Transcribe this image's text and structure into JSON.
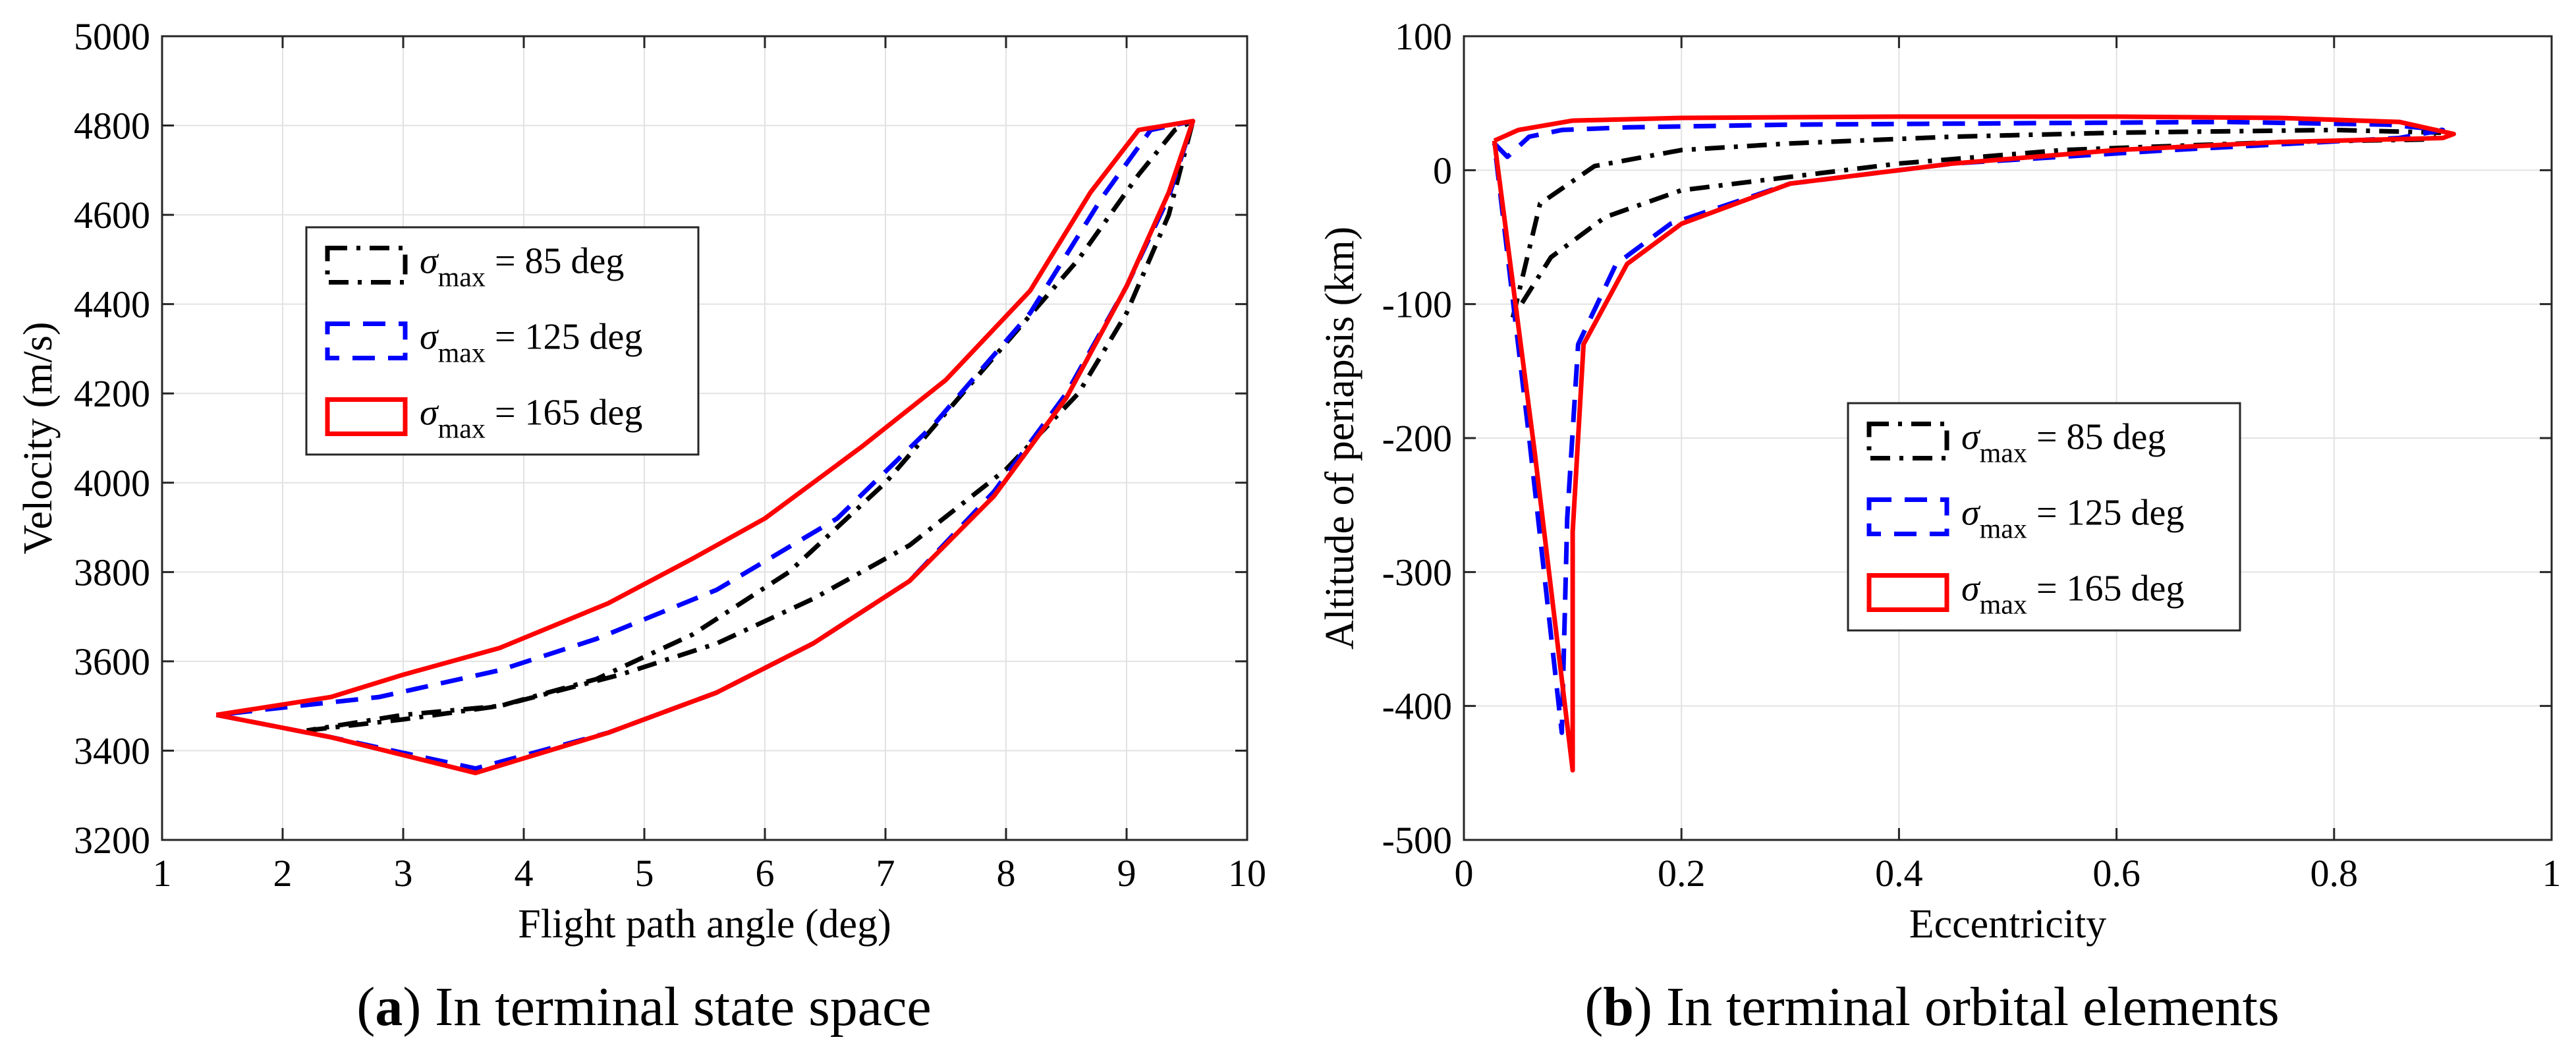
{
  "chart_data": [
    {
      "type": "line",
      "panel": "a",
      "title": "",
      "xlabel": "Flight path angle (deg)",
      "ylabel": "Velocity (m/s)",
      "xlim": [
        1,
        10
      ],
      "ylim": [
        3200,
        5000
      ],
      "xticks": [
        1,
        2,
        3,
        4,
        5,
        6,
        7,
        8,
        9,
        10
      ],
      "yticks": [
        3200,
        3400,
        3600,
        3800,
        4000,
        4200,
        4400,
        4600,
        4800,
        5000
      ],
      "grid": true,
      "legend_position": "upper-left",
      "series": [
        {
          "name": "σmax = 85 deg",
          "legend_symbol": "σ",
          "legend_sub": "max",
          "legend_rest": " = 85 deg",
          "color": "#000000",
          "style": "dashdot",
          "x": [
            2.2,
            3.0,
            3.8,
            4.8,
            5.6,
            6.4,
            7.2,
            8.0,
            8.6,
            9.0,
            9.35,
            9.55,
            9.4,
            9.1,
            8.6,
            7.8,
            7.0,
            6.2,
            5.4,
            4.6,
            3.8,
            3.0,
            2.2
          ],
          "y": [
            3445,
            3470,
            3500,
            3570,
            3640,
            3740,
            3860,
            4030,
            4200,
            4380,
            4600,
            4810,
            4790,
            4690,
            4500,
            4250,
            4000,
            3800,
            3660,
            3560,
            3500,
            3480,
            3445
          ]
        },
        {
          "name": "σmax = 125 deg",
          "legend_symbol": "σ",
          "legend_sub": "max",
          "legend_rest": " = 125 deg",
          "color": "#0000ff",
          "style": "dashed",
          "x": [
            1.45,
            2.4,
            3.6,
            4.7,
            5.6,
            6.4,
            7.2,
            7.9,
            8.5,
            9.0,
            9.35,
            9.55,
            9.2,
            8.8,
            8.2,
            7.4,
            6.6,
            5.6,
            4.6,
            3.8,
            2.8,
            1.45
          ],
          "y": [
            3480,
            3430,
            3360,
            3440,
            3530,
            3640,
            3780,
            3980,
            4200,
            4440,
            4640,
            4810,
            4790,
            4640,
            4380,
            4130,
            3920,
            3760,
            3650,
            3580,
            3520,
            3480
          ]
        },
        {
          "name": "σmax = 165 deg",
          "legend_symbol": "σ",
          "legend_sub": "max",
          "legend_rest": " = 165 deg",
          "color": "#ff0000",
          "style": "solid",
          "x": [
            1.45,
            2.4,
            3.6,
            4.7,
            5.6,
            6.4,
            7.2,
            7.9,
            8.5,
            9.0,
            9.35,
            9.55,
            9.1,
            8.7,
            8.2,
            7.5,
            6.8,
            6.0,
            5.4,
            4.7,
            3.8,
            3.0,
            2.4,
            1.45
          ],
          "y": [
            3480,
            3430,
            3350,
            3440,
            3530,
            3640,
            3780,
            3970,
            4190,
            4440,
            4650,
            4810,
            4790,
            4650,
            4430,
            4230,
            4080,
            3920,
            3830,
            3730,
            3630,
            3570,
            3520,
            3480
          ]
        }
      ]
    },
    {
      "type": "line",
      "panel": "b",
      "title": "",
      "xlabel": "Eccentricity",
      "ylabel": "Altitude of periapsis (km)",
      "xlim": [
        0,
        1
      ],
      "ylim": [
        -500,
        100
      ],
      "xticks": [
        0,
        0.2,
        0.4,
        0.6,
        0.8,
        1
      ],
      "yticks": [
        -500,
        -400,
        -300,
        -200,
        -100,
        0,
        100
      ],
      "grid": true,
      "legend_position": "center",
      "series": [
        {
          "name": "σmax = 85 deg",
          "legend_symbol": "σ",
          "legend_sub": "max",
          "legend_rest": " = 85 deg",
          "color": "#000000",
          "style": "dashdot",
          "x": [
            0.045,
            0.07,
            0.12,
            0.2,
            0.3,
            0.45,
            0.6,
            0.8,
            0.9,
            0.89,
            0.75,
            0.55,
            0.4,
            0.3,
            0.2,
            0.13,
            0.08,
            0.045
          ],
          "y": [
            -110,
            -25,
            3,
            15,
            20,
            25,
            28,
            30,
            28,
            23,
            21,
            15,
            5,
            -5,
            -15,
            -35,
            -65,
            -110
          ]
        },
        {
          "name": "σmax = 125 deg",
          "legend_symbol": "σ",
          "legend_sub": "max",
          "legend_rest": " = 125 deg",
          "color": "#0000ff",
          "style": "dashed",
          "x": [
            0.028,
            0.04,
            0.06,
            0.09,
            0.15,
            0.3,
            0.5,
            0.7,
            0.85,
            0.9,
            0.86,
            0.65,
            0.45,
            0.3,
            0.19,
            0.14,
            0.105,
            0.095,
            0.09,
            0.06,
            0.028
          ],
          "y": [
            20,
            10,
            25,
            30,
            32,
            34,
            35,
            36,
            34,
            30,
            24,
            15,
            5,
            -10,
            -40,
            -70,
            -130,
            -260,
            -420,
            -200,
            20
          ]
        },
        {
          "name": "σmax = 165 deg",
          "legend_symbol": "σ",
          "legend_sub": "max",
          "legend_rest": " = 165 deg",
          "color": "#ff0000",
          "style": "solid",
          "x": [
            0.028,
            0.05,
            0.1,
            0.2,
            0.4,
            0.6,
            0.75,
            0.86,
            0.91,
            0.9,
            0.75,
            0.6,
            0.45,
            0.3,
            0.2,
            0.15,
            0.11,
            0.1,
            0.1,
            0.065,
            0.028
          ],
          "y": [
            22,
            30,
            37,
            39,
            40,
            40,
            39,
            36,
            27,
            24,
            21,
            15,
            5,
            -10,
            -40,
            -70,
            -130,
            -270,
            -448,
            -210,
            22
          ]
        }
      ]
    }
  ],
  "captions": {
    "a": {
      "letter": "a",
      "text": ") In terminal state space"
    },
    "b": {
      "letter": "b",
      "text": ") In terminal orbital elements"
    }
  },
  "colors": {
    "black": "#000000",
    "blue": "#0000ff",
    "red": "#ff0000"
  }
}
